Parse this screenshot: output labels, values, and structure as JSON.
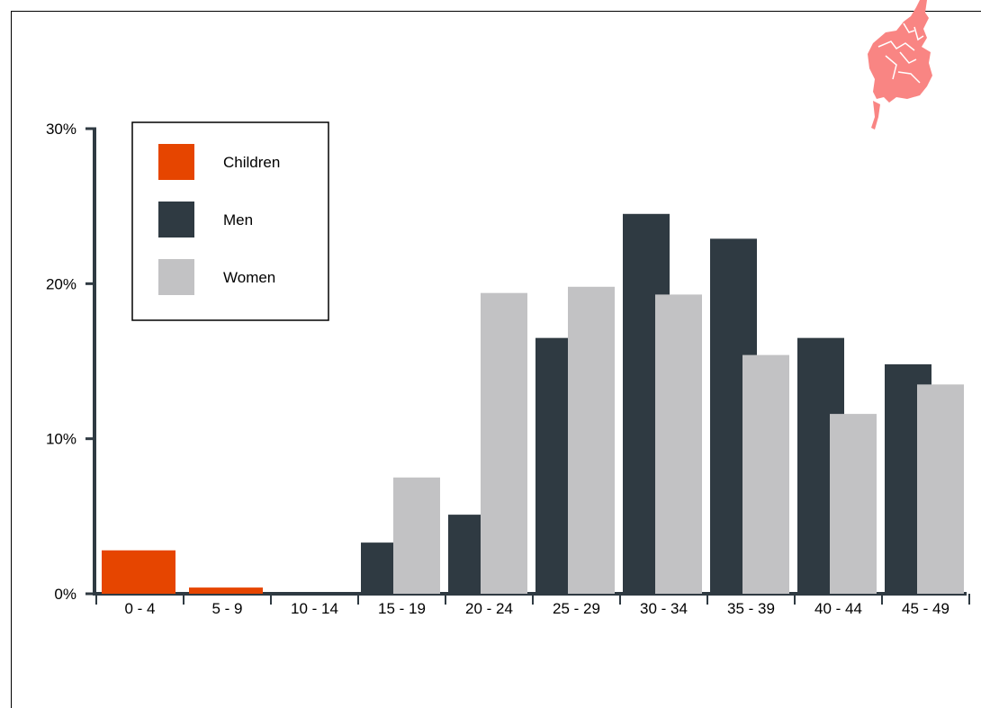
{
  "chart_data": {
    "type": "bar",
    "categories": [
      "0 - 4",
      "5 - 9",
      "10 - 14",
      "15 - 19",
      "20 - 24",
      "25 - 29",
      "30 - 34",
      "35 - 39",
      "40 - 44",
      "45 - 49"
    ],
    "series": [
      {
        "name": "Children",
        "color": "#e64500",
        "values": [
          2.8,
          0.4,
          0,
          null,
          null,
          null,
          null,
          null,
          null,
          null
        ]
      },
      {
        "name": "Men",
        "color": "#2f3a42",
        "values": [
          null,
          null,
          null,
          3.3,
          5.1,
          16.5,
          24.5,
          22.9,
          16.5,
          14.8
        ]
      },
      {
        "name": "Women",
        "color": "#c2c2c4",
        "values": [
          null,
          null,
          null,
          7.5,
          19.4,
          19.8,
          19.3,
          15.4,
          11.6,
          13.5
        ]
      }
    ],
    "y_ticks": [
      "0%",
      "10%",
      "20%",
      "30%"
    ],
    "ylim": [
      0,
      30
    ],
    "legend": {
      "placement": "top-left",
      "items": [
        {
          "label": "Children",
          "color": "#e64500"
        },
        {
          "label": "Men",
          "color": "#2f3a42"
        },
        {
          "label": "Women",
          "color": "#c2c2c4"
        }
      ]
    },
    "grid": false
  },
  "decoration": {
    "icon": "map-fragment-icon",
    "color": "#f98583"
  }
}
